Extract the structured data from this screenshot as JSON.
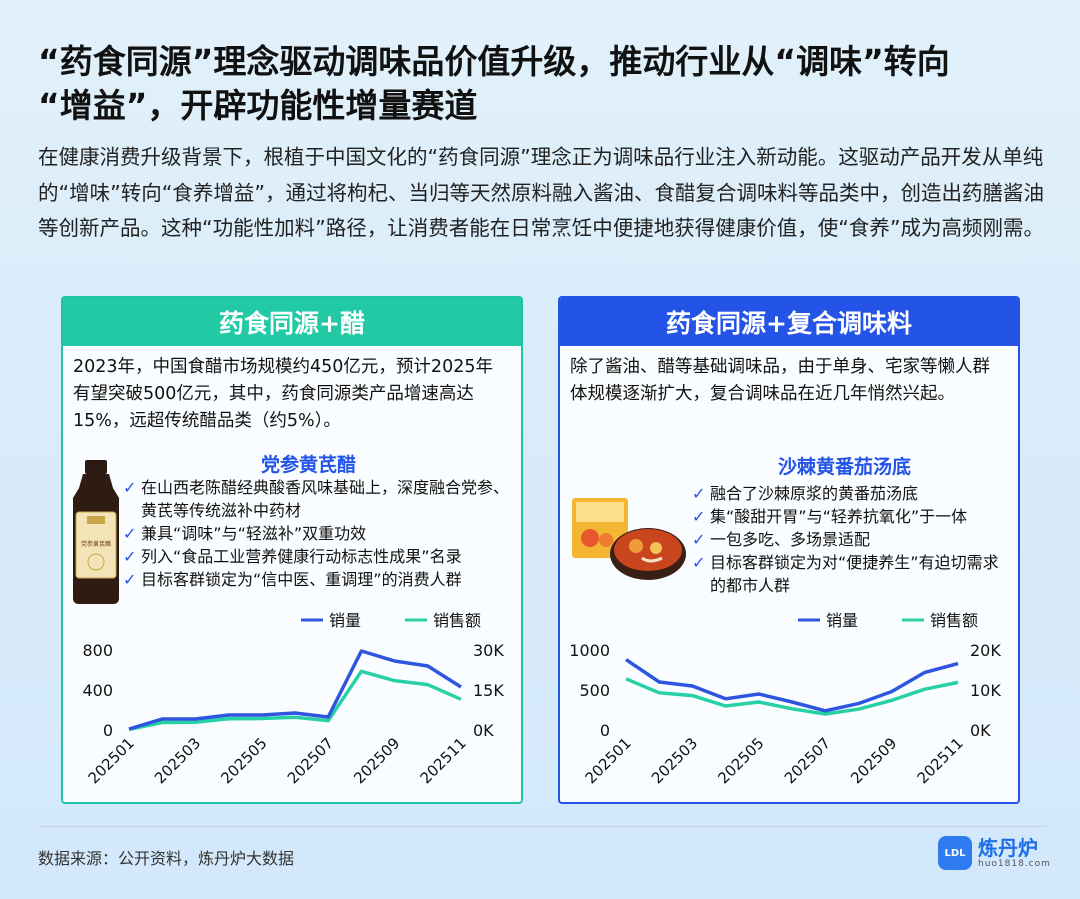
{
  "header": {
    "bg_word": "",
    "title_line1": "“药食同源”理念驱动调味品价值升级，推动行业从“调味”转向",
    "title_line2": "“增益”，开辟功能性增量赛道",
    "intro": "在健康消费升级背景下，根植于中国文化的“药食同源”理念正为调味品行业注入新动能。这驱动产品开发从单纯的“增味”转向“食养增益”，通过将枸杞、当归等天然原料融入酱油、食醋复合调味料等品类中，创造出药膳酱油等创新产品。这种“功能性加料”路径，让消费者能在日常烹饪中便捷地获得健康价值，使“食养”成为高频刚需。"
  },
  "left_panel": {
    "title": "药食同源+醋",
    "desc": "2023年，中国食醋市场规模约450亿元，预计2025年有望突破500亿元，其中，药食同源类产品增速高达15%，远超传统醋品类（约5%）。",
    "product_title": "党参黄芪醋",
    "bullets": [
      "在山西老陈醋经典酸香风味基础上，深度融合党参、黄芪等传统滋补中药材",
      "兼具“调味”与“轻滋补”双重功效",
      "列入“食品工业营养健康行动标志性成果”名录",
      "目标客群锁定为“信中医、重调理”的消费人群"
    ],
    "bottle_label": "党参黄芪醋"
  },
  "right_panel": {
    "title": "药食同源+复合调味料",
    "desc": "除了酱油、醋等基础调味品，由于单身、宅家等懒人群体规模逐渐扩大，复合调味品在近几年悄然兴起。",
    "product_title": "沙棘黄番茄汤底",
    "bullets": [
      "融合了沙棘原浆的黄番茄汤底",
      "集“酸甜开胃”与“轻养抗氧化”于一体",
      "一包多吃、多场景适配",
      "目标客群锁定为对“便捷养生”有迫切需求的都市人群"
    ]
  },
  "chart_data": [
    {
      "type": "line",
      "x": [
        "202501",
        "202502",
        "202503",
        "202504",
        "202505",
        "202506",
        "202507",
        "202508",
        "202509",
        "202510",
        "202511"
      ],
      "x_tick_labels": [
        "202501",
        "202503",
        "202505",
        "202507",
        "202509",
        "202511"
      ],
      "series": [
        {
          "name": "销量",
          "axis": "left",
          "color": "#2d55e0",
          "values": [
            10,
            110,
            110,
            150,
            150,
            170,
            130,
            790,
            690,
            640,
            430
          ]
        },
        {
          "name": "销售额",
          "axis": "right",
          "color": "#28d0a6",
          "values": [
            200,
            2800,
            2900,
            4200,
            4300,
            4800,
            3500,
            22000,
            18500,
            17000,
            11500
          ]
        }
      ],
      "y_left": {
        "ticks": [
          "0",
          "400",
          "800"
        ],
        "ylim": [
          0,
          800
        ]
      },
      "y_right": {
        "ticks": [
          "0K",
          "15K",
          "30K"
        ],
        "ylim": [
          0,
          30000
        ]
      },
      "legend": "top-right"
    },
    {
      "type": "line",
      "x": [
        "202501",
        "202502",
        "202503",
        "202504",
        "202505",
        "202506",
        "202507",
        "202508",
        "202509",
        "202510",
        "202511"
      ],
      "x_tick_labels": [
        "202501",
        "202503",
        "202505",
        "202507",
        "202509",
        "202511"
      ],
      "series": [
        {
          "name": "销量",
          "axis": "left",
          "color": "#2d55e0",
          "values": [
            880,
            600,
            550,
            390,
            450,
            350,
            240,
            330,
            480,
            720,
            830
          ]
        },
        {
          "name": "销售额",
          "axis": "right",
          "color": "#28d0a6",
          "values": [
            12800,
            9300,
            8600,
            6000,
            7000,
            5300,
            4000,
            5200,
            7400,
            10200,
            11900
          ]
        }
      ],
      "y_left": {
        "ticks": [
          "0",
          "500",
          "1000"
        ],
        "ylim": [
          0,
          1000
        ]
      },
      "y_right": {
        "ticks": [
          "0K",
          "10K",
          "20K"
        ],
        "ylim": [
          0,
          20000
        ]
      },
      "legend": "top-right"
    }
  ],
  "footer": {
    "source": "数据来源：公开资料，炼丹炉大数据",
    "logo_name": "炼丹炉",
    "logo_url": "huo1818.com",
    "logo_mark": "LDL"
  }
}
